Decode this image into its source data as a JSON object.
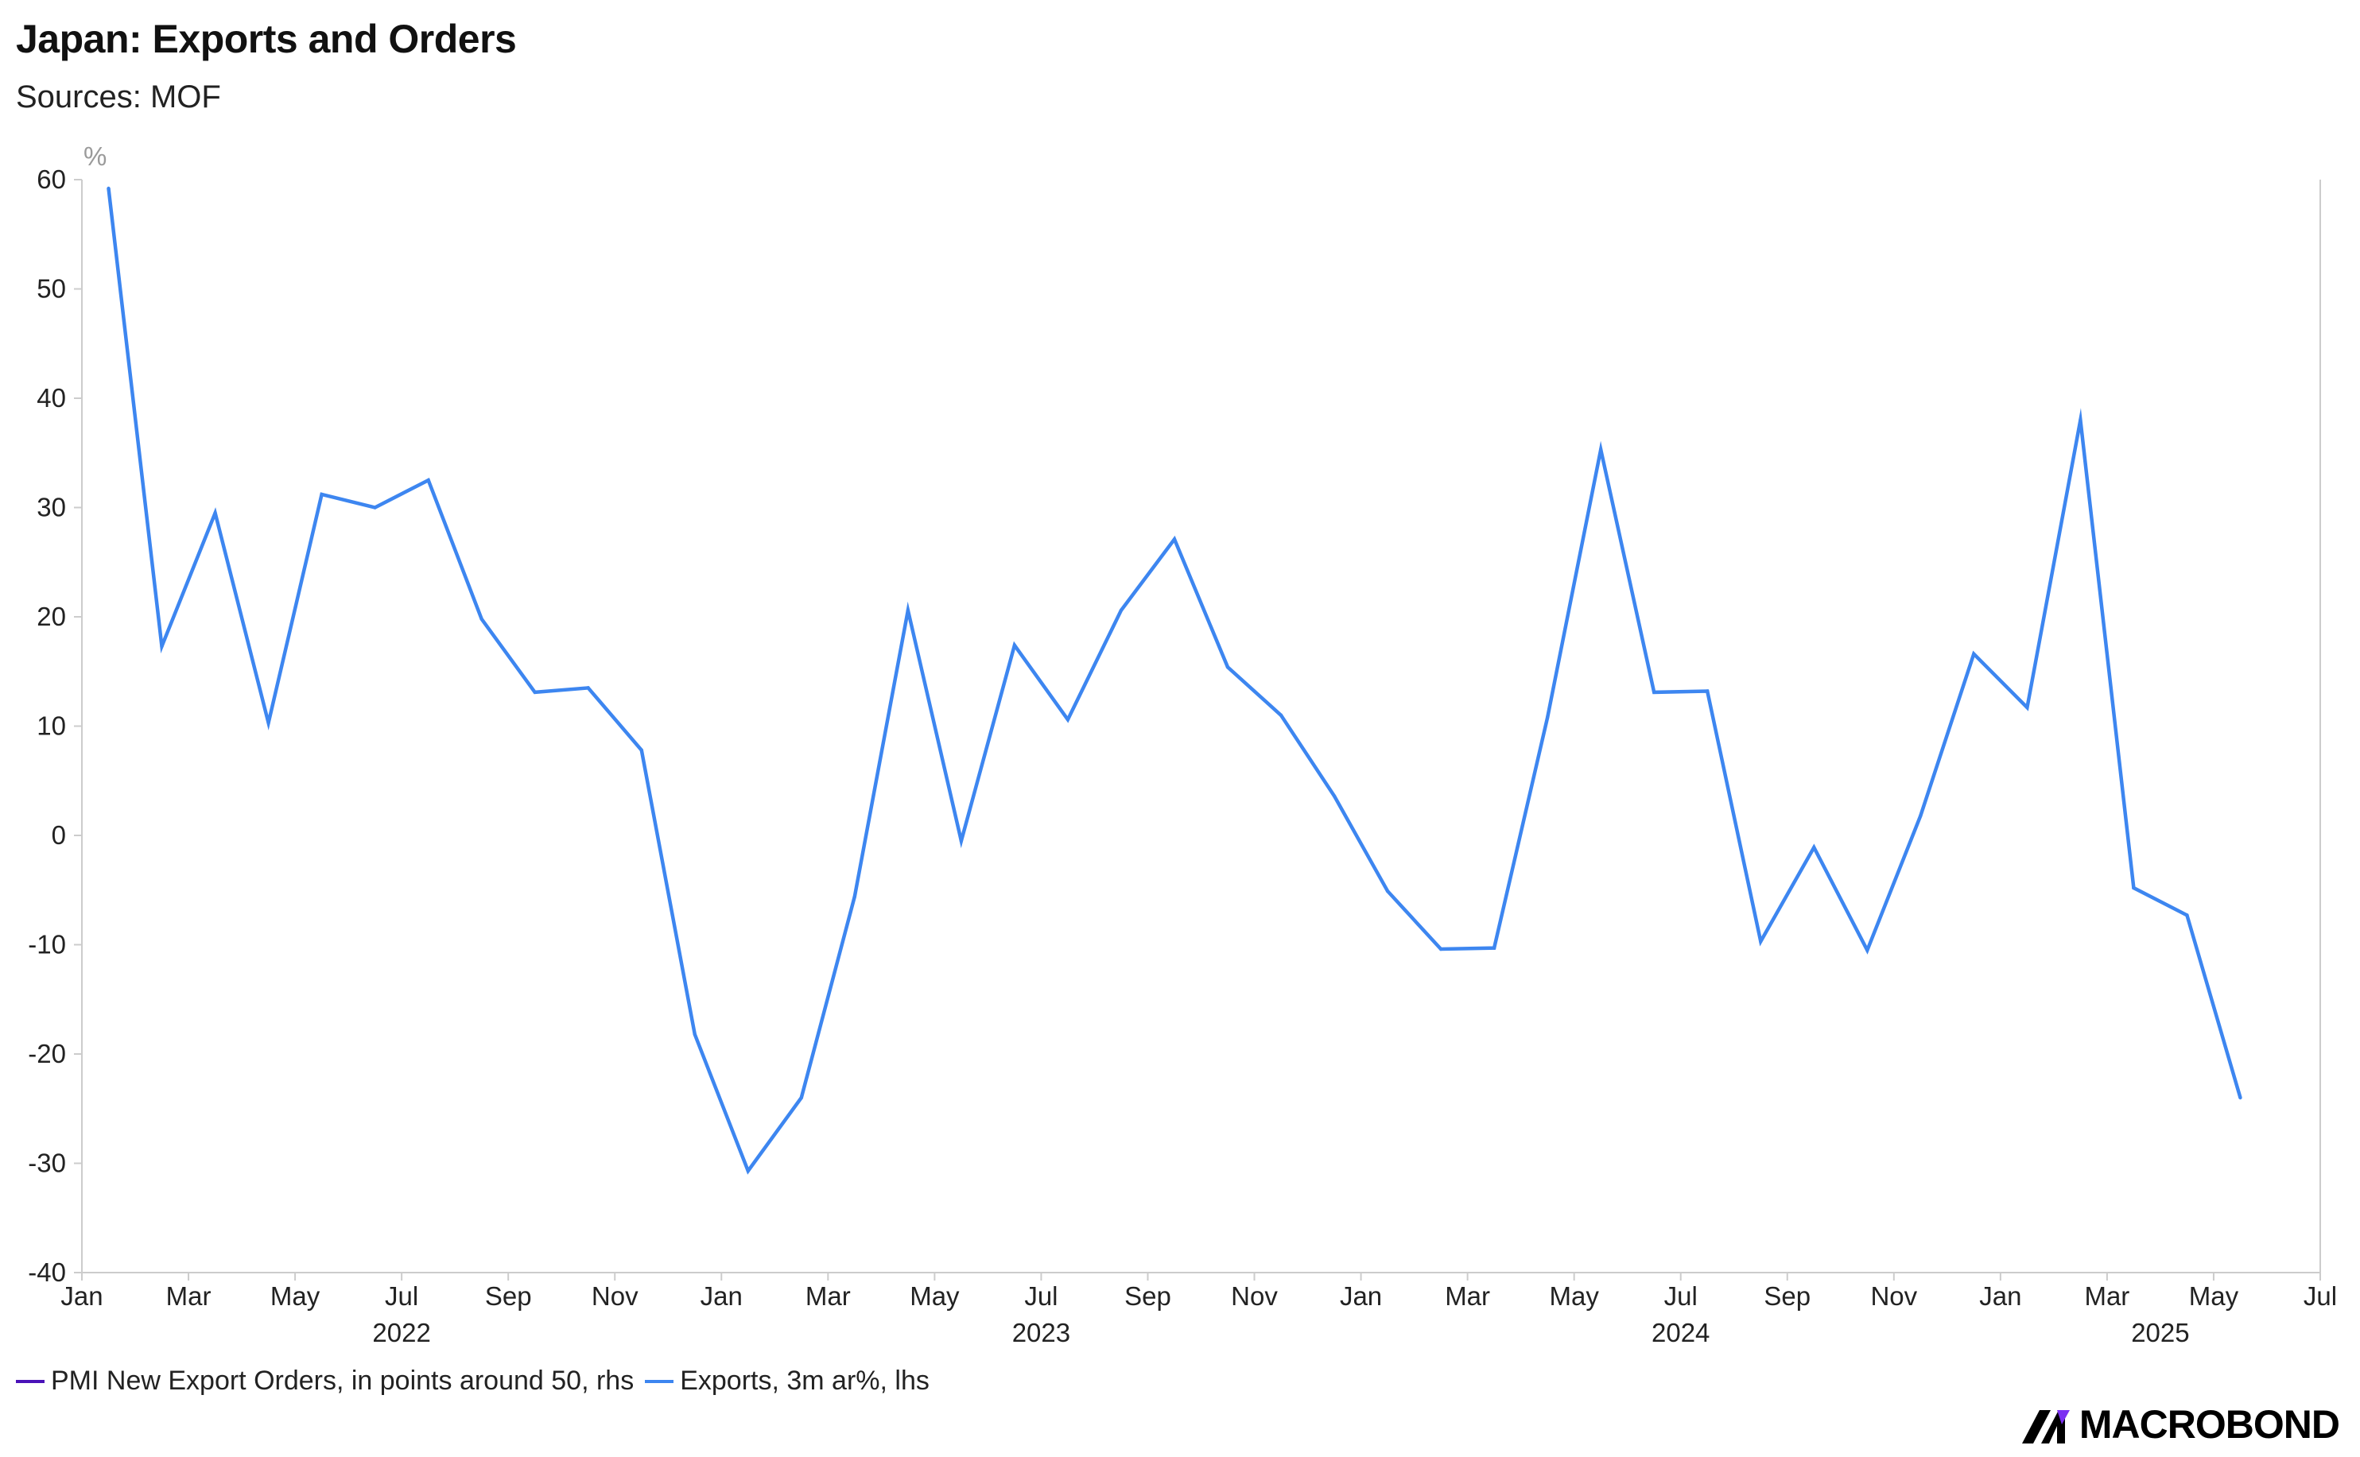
{
  "title": "Japan: Exports and Orders",
  "subtitle": "Sources: MOF",
  "brand": "MACROBOND",
  "colors": {
    "exports": "#3d86f0",
    "pmi": "#4a12b8",
    "axis": "#cccccc"
  },
  "chart_data": {
    "type": "line",
    "ylabel": "%",
    "ylim": [
      -40,
      60
    ],
    "yticks": [
      60,
      50,
      40,
      30,
      20,
      10,
      0,
      -10,
      -20,
      -30,
      -40
    ],
    "xlim": [
      "2022-01",
      "2025-07"
    ],
    "xticks": [
      "Jan",
      "Mar",
      "May",
      "Jul",
      "Sep",
      "Nov",
      "Jan",
      "Mar",
      "May",
      "Jul",
      "Sep",
      "Nov",
      "Jan",
      "Mar",
      "May",
      "Jul",
      "Sep",
      "Nov",
      "Jan",
      "Mar",
      "May",
      "Jul"
    ],
    "xtick_dates": [
      "2022-01",
      "2022-03",
      "2022-05",
      "2022-07",
      "2022-09",
      "2022-11",
      "2023-01",
      "2023-03",
      "2023-05",
      "2023-07",
      "2023-09",
      "2023-11",
      "2024-01",
      "2024-03",
      "2024-05",
      "2024-07",
      "2024-09",
      "2024-11",
      "2025-01",
      "2025-03",
      "2025-05",
      "2025-07"
    ],
    "year_labels": [
      {
        "label": "2022",
        "center": "2022-07"
      },
      {
        "label": "2023",
        "center": "2023-07"
      },
      {
        "label": "2024",
        "center": "2024-07"
      },
      {
        "label": "2025",
        "center": "2025-04"
      }
    ],
    "legend": "bottom-left",
    "series": [
      {
        "name": "PMI New Export Orders, in points around 50, rhs",
        "values": []
      },
      {
        "name": "Exports, 3m ar%, lhs",
        "x": [
          "2022-01",
          "2022-02",
          "2022-03",
          "2022-04",
          "2022-05",
          "2022-06",
          "2022-07",
          "2022-08",
          "2022-09",
          "2022-10",
          "2022-11",
          "2022-12",
          "2023-01",
          "2023-02",
          "2023-03",
          "2023-04",
          "2023-05",
          "2023-06",
          "2023-07",
          "2023-08",
          "2023-09",
          "2023-10",
          "2023-11",
          "2023-12",
          "2024-01",
          "2024-02",
          "2024-03",
          "2024-04",
          "2024-05",
          "2024-06",
          "2024-07",
          "2024-08",
          "2024-09",
          "2024-10",
          "2024-11",
          "2024-12",
          "2025-01",
          "2025-02",
          "2025-03",
          "2025-04",
          "2025-05"
        ],
        "values": [
          59.2,
          17.3,
          29.5,
          10.3,
          31.2,
          30.0,
          32.5,
          19.8,
          13.1,
          13.5,
          7.8,
          -18.2,
          -30.7,
          -24.0,
          -5.6,
          20.6,
          -0.5,
          17.4,
          10.6,
          20.6,
          27.1,
          15.4,
          11.0,
          3.6,
          -5.1,
          -10.4,
          -10.3,
          10.8,
          35.3,
          13.1,
          13.2,
          -9.7,
          -1.1,
          -10.5,
          1.8,
          16.6,
          11.7,
          38.0,
          -4.8,
          -7.3,
          -24.0
        ]
      }
    ]
  }
}
